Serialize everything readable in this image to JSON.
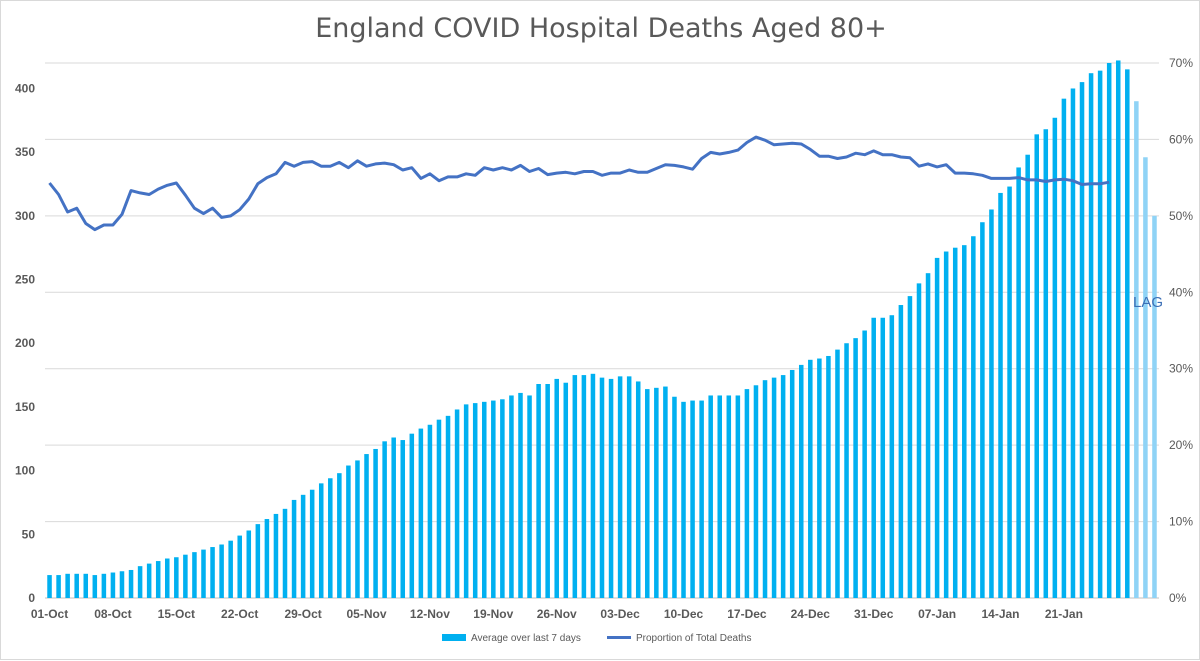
{
  "chart_data": {
    "type": "bar+line",
    "title": "England COVID Hospital Deaths Aged 80+",
    "x_tick_labels": [
      "01-Oct",
      "08-Oct",
      "15-Oct",
      "22-Oct",
      "29-Oct",
      "05-Nov",
      "12-Nov",
      "19-Nov",
      "26-Nov",
      "03-Dec",
      "10-Dec",
      "17-Dec",
      "24-Dec",
      "31-Dec",
      "07-Jan",
      "14-Jan",
      "21-Jan"
    ],
    "y_left": {
      "ylim": [
        0,
        420
      ],
      "ticks": [
        0,
        50,
        100,
        150,
        200,
        250,
        300,
        350,
        400
      ]
    },
    "y_right": {
      "ylim": [
        0,
        0.7
      ],
      "ticks": [
        "0%",
        "10%",
        "20%",
        "30%",
        "40%",
        "50%",
        "60%",
        "70%"
      ]
    },
    "grid": true,
    "legend_position": "bottom",
    "annotation": "LAG",
    "bar_color": "#00b0f0",
    "lag_bar_color": "#8fd3f6",
    "line_color": "#4472c4",
    "series": [
      {
        "name": "Average over last 7 days",
        "type": "bar",
        "start_date": "01-Oct",
        "values": [
          18,
          18,
          19,
          19,
          19,
          18,
          19,
          20,
          21,
          22,
          25,
          27,
          29,
          31,
          32,
          34,
          36,
          38,
          40,
          42,
          45,
          49,
          53,
          58,
          62,
          66,
          70,
          77,
          81,
          85,
          90,
          94,
          98,
          104,
          108,
          113,
          117,
          123,
          126,
          124,
          129,
          133,
          136,
          140,
          143,
          148,
          152,
          153,
          154,
          155,
          156,
          159,
          161,
          159,
          168,
          168,
          172,
          169,
          175,
          175,
          176,
          173,
          172,
          174,
          174,
          170,
          164,
          165,
          166,
          158,
          154,
          155,
          155,
          159,
          159,
          159,
          159,
          164,
          167,
          171,
          173,
          175,
          179,
          183,
          187,
          188,
          190,
          195,
          200,
          204,
          210,
          220,
          220,
          222,
          230,
          237,
          247,
          255,
          267,
          272,
          275,
          277,
          284,
          295,
          305,
          318,
          323,
          338,
          348,
          364,
          368,
          377,
          392,
          400,
          405,
          412,
          414,
          420,
          422,
          415,
          390,
          346,
          300
        ],
        "lag_from_index": 120
      },
      {
        "name": "Proportion of Total Deaths",
        "type": "line",
        "axis": "right",
        "values": [
          0.543,
          0.528,
          0.505,
          0.51,
          0.49,
          0.482,
          0.488,
          0.488,
          0.502,
          0.533,
          0.53,
          0.528,
          0.535,
          0.54,
          0.543,
          0.527,
          0.51,
          0.503,
          0.51,
          0.498,
          0.5,
          0.508,
          0.522,
          0.542,
          0.55,
          0.555,
          0.57,
          0.565,
          0.57,
          0.571,
          0.565,
          0.565,
          0.57,
          0.563,
          0.572,
          0.565,
          0.568,
          0.569,
          0.567,
          0.56,
          0.563,
          0.549,
          0.555,
          0.546,
          0.551,
          0.551,
          0.555,
          0.553,
          0.563,
          0.56,
          0.563,
          0.56,
          0.566,
          0.558,
          0.562,
          0.554,
          0.556,
          0.557,
          0.555,
          0.558,
          0.558,
          0.553,
          0.556,
          0.556,
          0.56,
          0.557,
          0.557,
          0.562,
          0.567,
          0.566,
          0.564,
          0.561,
          0.575,
          0.583,
          0.581,
          0.583,
          0.586,
          0.596,
          0.603,
          0.599,
          0.593,
          0.594,
          0.595,
          0.594,
          0.587,
          0.578,
          0.578,
          0.575,
          0.577,
          0.582,
          0.58,
          0.585,
          0.58,
          0.58,
          0.577,
          0.576,
          0.565,
          0.568,
          0.564,
          0.567,
          0.556,
          0.556,
          0.555,
          0.553,
          0.549,
          0.549,
          0.549,
          0.55,
          0.547,
          0.547,
          0.545,
          0.547,
          0.548,
          0.546,
          0.541,
          0.542,
          0.542,
          0.544
        ]
      }
    ]
  }
}
